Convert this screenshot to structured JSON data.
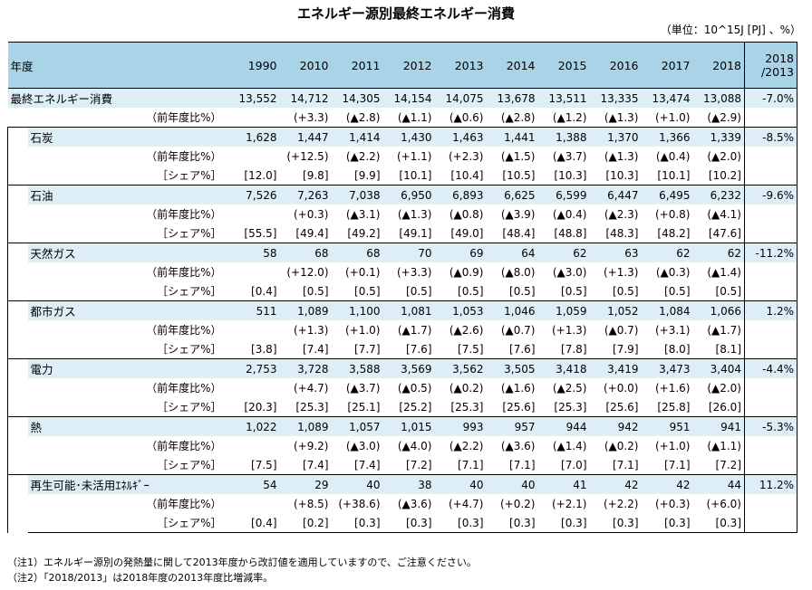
{
  "title": "エネルギー源別最終エネルギー消費",
  "unit": "（単位：10^15J [PJ] 、%）",
  "header": {
    "label": "年度",
    "years": [
      "1990",
      "2010",
      "2011",
      "2012",
      "2013",
      "2014",
      "2015",
      "2016",
      "2017",
      "2018"
    ],
    "change_line1": "2018",
    "change_line2": "/2013"
  },
  "total": {
    "label": "最終エネルギー消費",
    "values": [
      "13,552",
      "14,712",
      "14,305",
      "14,154",
      "14,075",
      "13,678",
      "13,511",
      "13,335",
      "13,474",
      "13,088"
    ],
    "change": "-7.0%",
    "yoy_label": "（前年度比%）",
    "yoy": [
      "",
      "(+3.3)",
      "(▲2.8)",
      "(▲1.1)",
      "(▲0.6)",
      "(▲2.8)",
      "(▲1.2)",
      "(▲1.3)",
      "(+1.0)",
      "(▲2.9)"
    ]
  },
  "yoy_label": "（前年度比%）",
  "share_label": "［シェア%］",
  "sources": [
    {
      "label": "石炭",
      "values": [
        "1,628",
        "1,447",
        "1,414",
        "1,430",
        "1,463",
        "1,441",
        "1,388",
        "1,370",
        "1,366",
        "1,339"
      ],
      "change": "-8.5%",
      "yoy": [
        "",
        "(+12.5)",
        "(▲2.2)",
        "(+1.1)",
        "(+2.3)",
        "(▲1.5)",
        "(▲3.7)",
        "(▲1.3)",
        "(▲0.4)",
        "(▲2.0)"
      ],
      "share": [
        "[12.0]",
        "[9.8]",
        "[9.9]",
        "[10.1]",
        "[10.4]",
        "[10.5]",
        "[10.3]",
        "[10.3]",
        "[10.1]",
        "[10.2]"
      ]
    },
    {
      "label": "石油",
      "values": [
        "7,526",
        "7,263",
        "7,038",
        "6,950",
        "6,893",
        "6,625",
        "6,599",
        "6,447",
        "6,495",
        "6,232"
      ],
      "change": "-9.6%",
      "yoy": [
        "",
        "(+0.3)",
        "(▲3.1)",
        "(▲1.3)",
        "(▲0.8)",
        "(▲3.9)",
        "(▲0.4)",
        "(▲2.3)",
        "(+0.8)",
        "(▲4.1)"
      ],
      "share": [
        "[55.5]",
        "[49.4]",
        "[49.2]",
        "[49.1]",
        "[49.0]",
        "[48.4]",
        "[48.8]",
        "[48.3]",
        "[48.2]",
        "[47.6]"
      ]
    },
    {
      "label": "天然ガス",
      "values": [
        "58",
        "68",
        "68",
        "70",
        "69",
        "64",
        "62",
        "63",
        "62",
        "62"
      ],
      "change": "-11.2%",
      "yoy": [
        "",
        "(+12.0)",
        "(+0.1)",
        "(+3.3)",
        "(▲0.9)",
        "(▲8.0)",
        "(▲3.0)",
        "(+1.3)",
        "(▲0.3)",
        "(▲1.4)"
      ],
      "share": [
        "[0.4]",
        "[0.5]",
        "[0.5]",
        "[0.5]",
        "[0.5]",
        "[0.5]",
        "[0.5]",
        "[0.5]",
        "[0.5]",
        "[0.5]"
      ]
    },
    {
      "label": "都市ガス",
      "values": [
        "511",
        "1,089",
        "1,100",
        "1,081",
        "1,053",
        "1,046",
        "1,059",
        "1,052",
        "1,084",
        "1,066"
      ],
      "change": "1.2%",
      "yoy": [
        "",
        "(+1.3)",
        "(+1.0)",
        "(▲1.7)",
        "(▲2.6)",
        "(▲0.7)",
        "(+1.3)",
        "(▲0.7)",
        "(+3.1)",
        "(▲1.7)"
      ],
      "share": [
        "[3.8]",
        "[7.4]",
        "[7.7]",
        "[7.6]",
        "[7.5]",
        "[7.6]",
        "[7.8]",
        "[7.9]",
        "[8.0]",
        "[8.1]"
      ]
    },
    {
      "label": "電力",
      "values": [
        "2,753",
        "3,728",
        "3,588",
        "3,569",
        "3,562",
        "3,505",
        "3,418",
        "3,419",
        "3,473",
        "3,404"
      ],
      "change": "-4.4%",
      "yoy": [
        "",
        "(+4.7)",
        "(▲3.7)",
        "(▲0.5)",
        "(▲0.2)",
        "(▲1.6)",
        "(▲2.5)",
        "(+0.0)",
        "(+1.6)",
        "(▲2.0)"
      ],
      "share": [
        "[20.3]",
        "[25.3]",
        "[25.1]",
        "[25.2]",
        "[25.3]",
        "[25.6]",
        "[25.3]",
        "[25.6]",
        "[25.8]",
        "[26.0]"
      ]
    },
    {
      "label": "熱",
      "values": [
        "1,022",
        "1,089",
        "1,057",
        "1,015",
        "993",
        "957",
        "944",
        "942",
        "951",
        "941"
      ],
      "change": "-5.3%",
      "yoy": [
        "",
        "(+9.2)",
        "(▲3.0)",
        "(▲4.0)",
        "(▲2.2)",
        "(▲3.6)",
        "(▲1.4)",
        "(▲0.2)",
        "(+1.0)",
        "(▲1.1)"
      ],
      "share": [
        "[7.5]",
        "[7.4]",
        "[7.4]",
        "[7.2]",
        "[7.1]",
        "[7.1]",
        "[7.0]",
        "[7.1]",
        "[7.1]",
        "[7.2]"
      ]
    },
    {
      "label": "再生可能･未活用ｴﾈﾙｷﾞｰ",
      "values": [
        "54",
        "29",
        "40",
        "38",
        "40",
        "40",
        "41",
        "42",
        "42",
        "44"
      ],
      "change": "11.2%",
      "yoy": [
        "",
        "(+8.5)",
        "(+38.6)",
        "(▲3.6)",
        "(+4.7)",
        "(+0.2)",
        "(+2.1)",
        "(+2.2)",
        "(+0.3)",
        "(+6.0)"
      ],
      "share": [
        "[0.4]",
        "[0.2]",
        "[0.3]",
        "[0.3]",
        "[0.3]",
        "[0.3]",
        "[0.3]",
        "[0.3]",
        "[0.3]",
        "[0.3]"
      ]
    }
  ],
  "notes": [
    "（注1）エネルギー源別の発熱量に関して2013年度から改訂値を適用していますので、ご注意ください。",
    "（注2）「2018/2013」は2018年度の2013年度比増減率。"
  ]
}
